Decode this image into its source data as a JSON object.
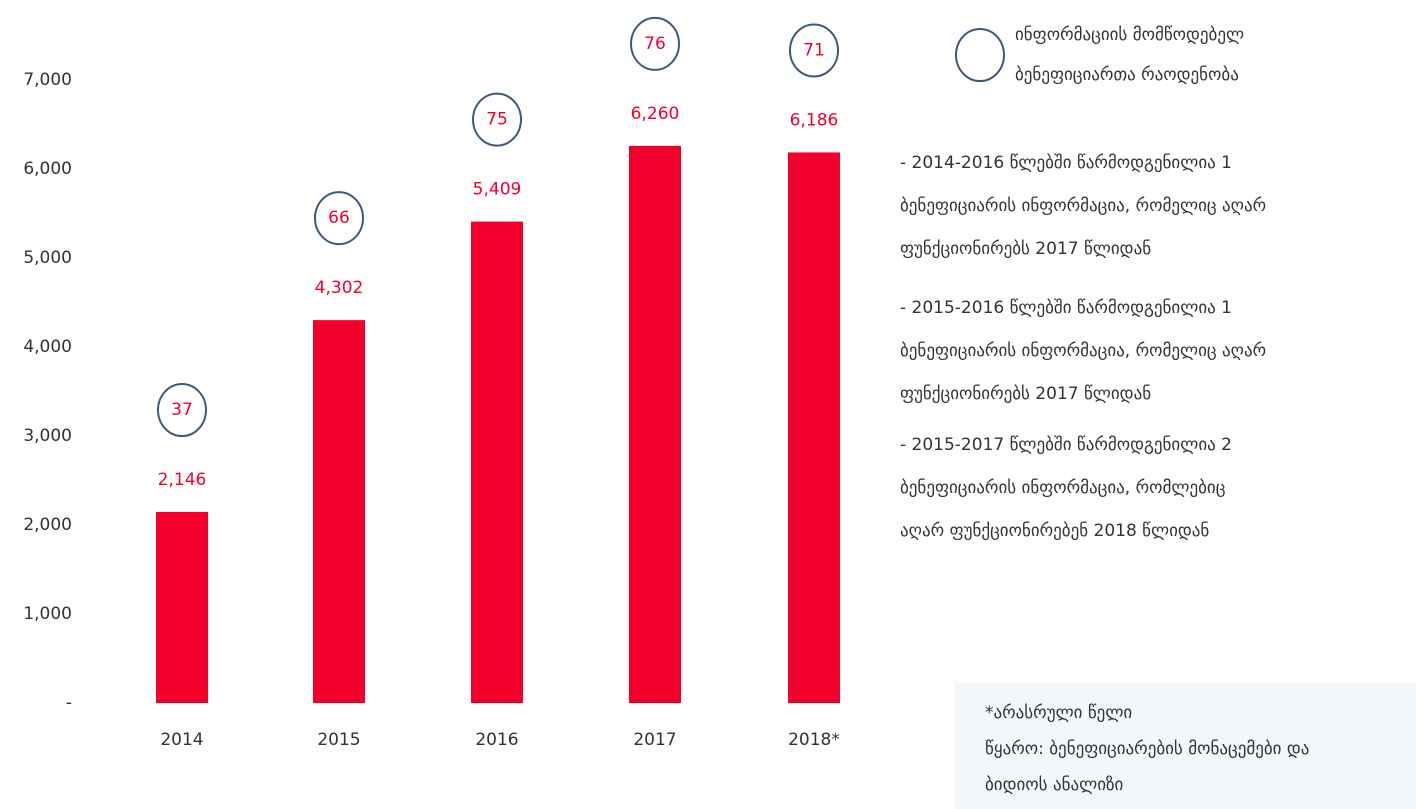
{
  "chart_data": {
    "type": "bar",
    "categories": [
      "2014",
      "2015",
      "2016",
      "2017",
      "2018*"
    ],
    "values": [
      2146,
      4302,
      5409,
      6260,
      6186
    ],
    "value_labels": [
      "2,146",
      "4,302",
      "5,409",
      "6,260",
      "6,186"
    ],
    "color": "#f0002a",
    "counts": [
      37,
      66,
      75,
      76,
      71
    ],
    "counts_color": "#3d5a7a",
    "counts_legend": [
      "ინფორმაციის მომწოდებელ",
      "ბენეფიციართა რაოდენობა"
    ],
    "ylim": [
      0,
      7000
    ],
    "yticks": [
      {
        "value": 0,
        "label": "-"
      },
      {
        "value": 1000,
        "label": "1,000"
      },
      {
        "value": 2000,
        "label": "2,000"
      },
      {
        "value": 3000,
        "label": "3,000"
      },
      {
        "value": 4000,
        "label": "4,000"
      },
      {
        "value": 5000,
        "label": "5,000"
      },
      {
        "value": 6000,
        "label": "6,000"
      },
      {
        "value": 7000,
        "label": "7,000"
      }
    ],
    "notes": [
      [
        "- 2014-2016 წლებში წარმოდგენილია 1",
        "ბენეფიციარის ინფორმაცია, რომელიც აღარ",
        "ფუნქციონირებს 2017 წლიდან"
      ],
      [
        "- 2015-2016 წლებში წარმოდგენილია 1",
        "ბენეფიციარის ინფორმაცია, რომელიც აღარ",
        "ფუნქციონირებს 2017 წლიდან"
      ],
      [
        "- 2015-2017 წლებში წარმოდგენილია 2",
        "ბენეფიციარის ინფორმაცია, რომლებიც",
        "აღარ ფუნქციონირებენ 2018 წლიდან"
      ]
    ],
    "footnote": [
      "*არასრული წელი",
      "წყარო: ბენეფიციარების მონაცემები და",
      "ბიდიოს ანალიზი"
    ]
  }
}
